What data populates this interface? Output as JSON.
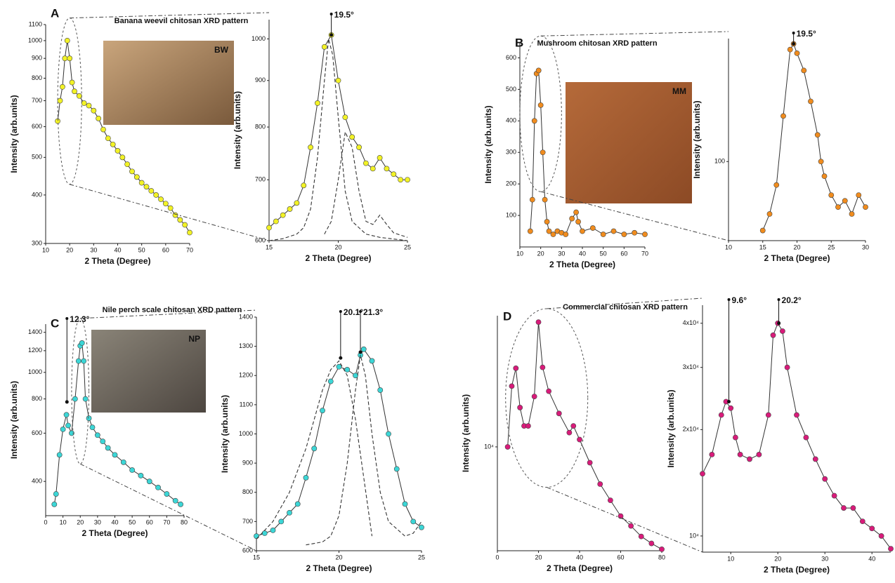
{
  "chart_data": [
    {
      "type": "scatter",
      "panel": "A",
      "title": "Banana weevil chitosan XRD pattern",
      "inset_label": "BW",
      "xlabel": "2 Theta (Degree)",
      "ylabel": "Intensity (arb.units)",
      "log_y": true,
      "xlim": [
        10,
        70
      ],
      "xticks": [
        10,
        20,
        30,
        40,
        50,
        60,
        70
      ],
      "ylim": [
        300,
        1100
      ],
      "yticks": [
        300,
        400,
        500,
        600,
        700,
        800,
        900,
        1000,
        1100
      ],
      "series": [
        {
          "color": "#f2f226",
          "x": [
            15,
            16,
            17,
            18,
            19,
            20,
            21,
            22,
            24,
            26,
            28,
            30,
            32,
            34,
            36,
            38,
            40,
            42,
            44,
            46,
            48,
            50,
            52,
            54,
            56,
            58,
            60,
            62,
            64,
            66,
            68,
            70
          ],
          "values": [
            620,
            700,
            760,
            900,
            1000,
            900,
            780,
            740,
            720,
            690,
            680,
            660,
            630,
            590,
            560,
            540,
            520,
            500,
            480,
            460,
            445,
            430,
            420,
            410,
            400,
            390,
            380,
            370,
            355,
            345,
            335,
            320
          ]
        }
      ]
    },
    {
      "type": "scatter",
      "xlabel": "2 Theta (Degree)",
      "ylabel": "Intensity (arb.units)",
      "log_y": true,
      "xlim": [
        15,
        25
      ],
      "xticks": [
        15,
        20,
        25
      ],
      "ylim": [
        600,
        1050
      ],
      "yticks": [
        600,
        700,
        800,
        900,
        1000
      ],
      "annotations": [
        {
          "x": 19.5,
          "y": 1010,
          "text": "19.5°"
        }
      ],
      "series": [
        {
          "color": "#f2f226",
          "x": [
            15,
            15.5,
            16,
            16.5,
            17,
            17.5,
            18,
            18.5,
            19,
            19.5,
            20,
            20.5,
            21,
            21.5,
            22,
            22.5,
            23,
            23.5,
            24,
            24.5,
            25
          ],
          "values": [
            620,
            630,
            640,
            650,
            660,
            690,
            760,
            850,
            980,
            1010,
            900,
            820,
            780,
            760,
            730,
            720,
            740,
            720,
            710,
            700,
            700
          ]
        },
        {
          "color": "#333333",
          "dash": true,
          "x": [
            15,
            16,
            17,
            17.5,
            18,
            18.5,
            19,
            19.3,
            19.6,
            20,
            20.5,
            21,
            22,
            23,
            25
          ],
          "values": [
            600,
            603,
            610,
            620,
            650,
            740,
            900,
            1000,
            960,
            820,
            680,
            630,
            610,
            605,
            600
          ]
        },
        {
          "color": "#333333",
          "dash": true,
          "x": [
            19,
            19.5,
            20,
            20.5,
            21,
            21.5,
            22,
            22.5,
            23,
            23.5,
            24,
            25
          ],
          "values": [
            610,
            630,
            700,
            790,
            760,
            680,
            630,
            625,
            640,
            625,
            612,
            605
          ]
        }
      ]
    },
    {
      "type": "scatter",
      "panel": "B",
      "title": "Mushroom chitosan XRD pattern",
      "inset_label": "MM",
      "xlabel": "2 Theta (Degree)",
      "ylabel": "Intensity (arb.units)",
      "xlim": [
        10,
        70
      ],
      "xticks": [
        10,
        20,
        30,
        40,
        50,
        60,
        70
      ],
      "ylim": [
        0,
        650
      ],
      "yticks": [
        100,
        200,
        300,
        400,
        500,
        600
      ],
      "series": [
        {
          "color": "#f08c1e",
          "x": [
            15,
            16,
            17,
            18,
            19,
            20,
            21,
            22,
            23,
            24,
            26,
            28,
            30,
            32,
            35,
            37,
            38,
            40,
            45,
            50,
            55,
            60,
            65,
            70
          ],
          "values": [
            50,
            150,
            400,
            550,
            560,
            450,
            300,
            150,
            80,
            50,
            40,
            50,
            45,
            40,
            90,
            110,
            80,
            50,
            60,
            40,
            50,
            40,
            45,
            40
          ]
        }
      ]
    },
    {
      "type": "scatter",
      "xlabel": "2 Theta (Degree)",
      "ylabel": "Intensity (arb.units)",
      "log_y": true,
      "xlim": [
        10,
        30
      ],
      "xticks": [
        10,
        15,
        20,
        25,
        30
      ],
      "ylim": [
        30,
        650
      ],
      "yticks": [
        100
      ],
      "annotations": [
        {
          "x": 19.5,
          "y": 600,
          "text": "19.5°"
        }
      ],
      "series": [
        {
          "color": "#f08c1e",
          "x": [
            15,
            16,
            17,
            18,
            19,
            19.5,
            20,
            21,
            22,
            23,
            23.5,
            24,
            25,
            26,
            27,
            28,
            29,
            30
          ],
          "values": [
            35,
            45,
            70,
            200,
            550,
            600,
            520,
            400,
            250,
            150,
            100,
            80,
            60,
            50,
            55,
            45,
            60,
            50
          ]
        }
      ]
    },
    {
      "type": "scatter",
      "panel": "C",
      "title": "Nile perch scale chitosan XRD pattern",
      "inset_label": "NP",
      "xlabel": "2 Theta (Degree)",
      "ylabel": "Intensity (arb.units)",
      "log_y": true,
      "xlim": [
        0,
        80
      ],
      "xticks": [
        0,
        10,
        20,
        30,
        40,
        50,
        60,
        70,
        80
      ],
      "ylim": [
        300,
        1500
      ],
      "yticks": [
        400,
        600,
        800,
        1000,
        1200,
        1400
      ],
      "annotations": [
        {
          "x": 12.3,
          "y": 780,
          "text": "12.3°"
        }
      ],
      "series": [
        {
          "color": "#3cd6d6",
          "x": [
            5,
            6,
            8,
            10,
            12,
            13,
            15,
            17,
            19,
            20,
            21,
            22,
            23,
            25,
            27,
            30,
            33,
            36,
            40,
            45,
            50,
            55,
            60,
            65,
            70,
            75,
            78
          ],
          "values": [
            330,
            360,
            500,
            620,
            700,
            640,
            600,
            800,
            1100,
            1250,
            1280,
            1100,
            800,
            680,
            630,
            590,
            560,
            530,
            500,
            470,
            440,
            420,
            400,
            380,
            360,
            340,
            330
          ]
        }
      ]
    },
    {
      "type": "scatter",
      "xlabel": "2 Theta (Degree)",
      "ylabel": "Intensity (arb.units)",
      "xlim": [
        15,
        25
      ],
      "xticks": [
        15,
        20,
        25
      ],
      "ylim": [
        600,
        1400
      ],
      "yticks": [
        600,
        700,
        800,
        900,
        1000,
        1100,
        1200,
        1300,
        1400
      ],
      "annotations": [
        {
          "x": 20.1,
          "y": 1260,
          "text": "20.1°"
        },
        {
          "x": 21.3,
          "y": 1280,
          "text": "21.3°"
        }
      ],
      "series": [
        {
          "color": "#3cd6d6",
          "x": [
            15,
            15.5,
            16,
            16.5,
            17,
            17.5,
            18,
            18.5,
            19,
            19.5,
            20,
            20.5,
            21,
            21.3,
            21.5,
            22,
            22.5,
            23,
            23.5,
            24,
            24.5,
            25
          ],
          "values": [
            650,
            660,
            670,
            700,
            730,
            760,
            850,
            950,
            1080,
            1180,
            1230,
            1220,
            1200,
            1270,
            1290,
            1250,
            1150,
            1000,
            880,
            760,
            700,
            680
          ]
        },
        {
          "color": "#333333",
          "dash": true,
          "x": [
            18,
            19,
            19.5,
            20,
            20.5,
            21,
            21.3,
            21.6,
            22,
            22.5,
            23,
            24,
            24.5,
            25
          ],
          "values": [
            620,
            630,
            650,
            720,
            900,
            1150,
            1270,
            1200,
            1000,
            800,
            700,
            650,
            660,
            700
          ]
        },
        {
          "color": "#333333",
          "dash": true,
          "x": [
            15,
            16,
            17,
            18,
            18.5,
            19,
            19.5,
            20,
            20.5,
            21,
            21.5,
            22
          ],
          "values": [
            640,
            700,
            800,
            950,
            1050,
            1150,
            1220,
            1250,
            1200,
            1050,
            850,
            650
          ]
        }
      ]
    },
    {
      "type": "scatter",
      "panel": "D",
      "title": "Commercial chitosan XRD pattern",
      "xlabel": "2 Theta (Degree)",
      "ylabel": "Intensity (arb.units)",
      "log_y": true,
      "xlim": [
        0,
        80
      ],
      "xticks": [
        0,
        20,
        40,
        60,
        80
      ],
      "ylim": [
        5000,
        24000
      ],
      "yticks": [
        {
          "value": 10000,
          "label": "10⁴"
        }
      ],
      "series": [
        {
          "color": "#d81b7a",
          "x": [
            5,
            7,
            9,
            11,
            13,
            15,
            18,
            20,
            22,
            25,
            30,
            35,
            37,
            40,
            45,
            50,
            55,
            60,
            65,
            70,
            75,
            80
          ],
          "values": [
            10000,
            15000,
            16900,
            13000,
            11500,
            11500,
            14000,
            23000,
            17000,
            14500,
            12500,
            11000,
            11500,
            10500,
            9000,
            7800,
            7000,
            6300,
            5900,
            5500,
            5250,
            5050
          ]
        }
      ]
    },
    {
      "type": "scatter",
      "xlabel": "2 Theta (Degree)",
      "ylabel": "Intensity (arb.units)",
      "log_y": true,
      "xlim": [
        4,
        44
      ],
      "xticks": [
        10,
        20,
        30,
        40
      ],
      "ylim": [
        9000,
        45000
      ],
      "yticks": [
        {
          "value": 10000,
          "label": "10⁴"
        },
        {
          "value": 20000,
          "label": "2x10⁴"
        },
        {
          "value": 30000,
          "label": "3x10⁴"
        },
        {
          "value": 40000,
          "label": "4x10⁴"
        }
      ],
      "annotations": [
        {
          "x": 9.6,
          "y": 24000,
          "text": "9.6°"
        },
        {
          "x": 20.2,
          "y": 40000,
          "text": "20.2°"
        }
      ],
      "series": [
        {
          "color": "#d81b7a",
          "x": [
            4,
            6,
            8,
            9,
            10,
            11,
            12,
            14,
            16,
            18,
            19,
            20,
            21,
            22,
            24,
            26,
            28,
            30,
            32,
            34,
            36,
            38,
            40,
            42,
            44
          ],
          "values": [
            15000,
            17000,
            22000,
            24000,
            23000,
            19000,
            17000,
            16500,
            17000,
            22000,
            37000,
            40000,
            38000,
            30000,
            22000,
            19000,
            16500,
            14500,
            13000,
            12000,
            12000,
            11000,
            10500,
            10000,
            9200
          ]
        }
      ]
    }
  ]
}
